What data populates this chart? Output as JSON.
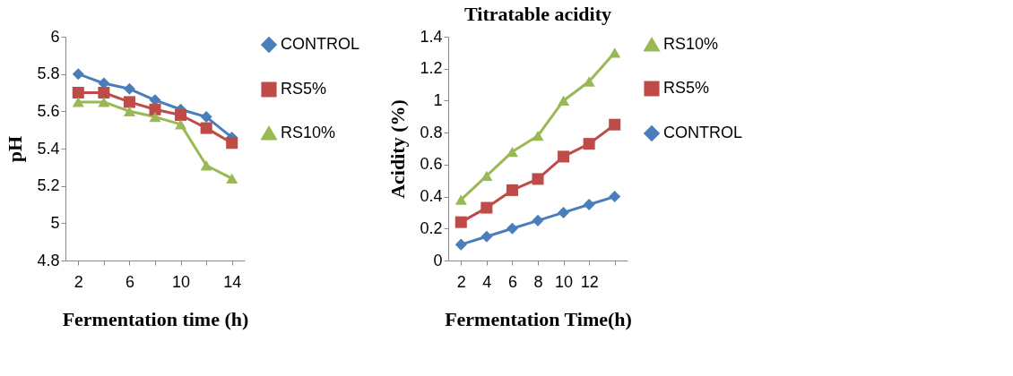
{
  "chart_data": [
    {
      "type": "line",
      "xlabel": "Fermentation  time (h)",
      "ylabel": "pH",
      "categories": [
        "2",
        null,
        "6",
        null,
        "10",
        null,
        "14"
      ],
      "ylim": [
        4.8,
        6
      ],
      "yticks": [
        4.8,
        5,
        5.2,
        5.4,
        5.6,
        5.8,
        6
      ],
      "grid": false,
      "legend": "right",
      "line_style": "solid",
      "series": [
        {
          "name": "CONTROL",
          "color": "#4a7ebb",
          "marker": "diamond",
          "values": [
            5.8,
            5.75,
            5.72,
            5.66,
            5.61,
            5.57,
            5.46
          ]
        },
        {
          "name": "RS5%",
          "color": "#be4b48",
          "marker": "square",
          "values": [
            5.7,
            5.7,
            5.65,
            5.61,
            5.58,
            5.51,
            5.43
          ]
        },
        {
          "name": "RS10%",
          "color": "#98b954",
          "marker": "triangle",
          "values": [
            5.65,
            5.65,
            5.6,
            5.57,
            5.53,
            5.31,
            5.24
          ]
        }
      ]
    },
    {
      "type": "line",
      "title": "Titratable acidity",
      "xlabel": "Fermentation Time(h)",
      "ylabel": "Acidity (%)",
      "categories": [
        "2",
        "4",
        "6",
        "8",
        "10",
        "12",
        null
      ],
      "ylim": [
        0,
        1.4
      ],
      "yticks": [
        0,
        0.2,
        0.4,
        0.6,
        0.8,
        1,
        1.2,
        1.4
      ],
      "grid": false,
      "legend": "right",
      "line_style": "solid",
      "series": [
        {
          "name": "RS10%",
          "color": "#98b954",
          "marker": "triangle",
          "values": [
            0.38,
            0.53,
            0.68,
            0.78,
            1.0,
            1.12,
            1.3
          ]
        },
        {
          "name": "RS5%",
          "color": "#be4b48",
          "marker": "square",
          "values": [
            0.24,
            0.33,
            0.44,
            0.51,
            0.65,
            0.73,
            0.85
          ]
        },
        {
          "name": "CONTROL",
          "color": "#4a7ebb",
          "marker": "diamond",
          "values": [
            0.1,
            0.15,
            0.2,
            0.25,
            0.3,
            0.35,
            0.4
          ]
        }
      ]
    }
  ]
}
